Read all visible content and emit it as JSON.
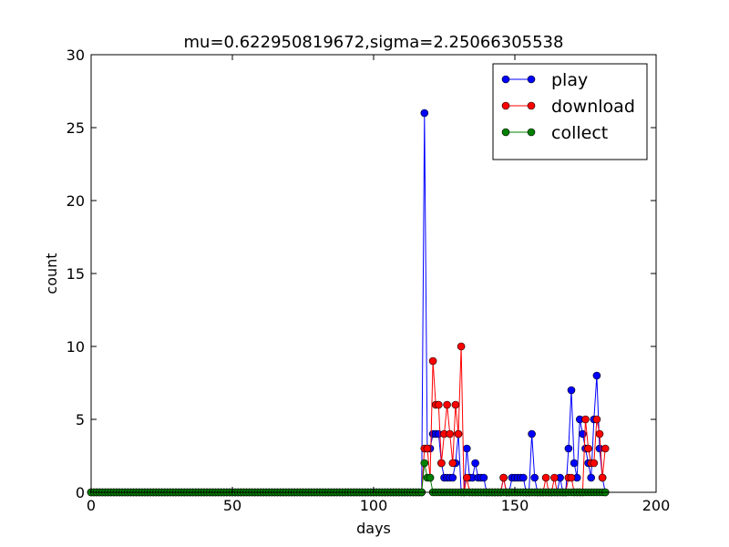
{
  "chart_data": {
    "type": "line",
    "title": "mu=0.622950819672,sigma=2.25066305538",
    "xlabel": "days",
    "ylabel": "count",
    "xlim": [
      0,
      200
    ],
    "ylim": [
      0,
      30
    ],
    "xticks": [
      0,
      50,
      100,
      150,
      200
    ],
    "yticks": [
      0,
      5,
      10,
      15,
      20,
      25,
      30
    ],
    "grid": false,
    "legend_position": "top-right",
    "x_range": [
      0,
      182
    ],
    "series": [
      {
        "name": "play",
        "color": "#0000ff",
        "nonzero": {
          "118": 26,
          "119": 3,
          "120": 3,
          "121": 4,
          "122": 4,
          "123": 4,
          "124": 2,
          "125": 1,
          "126": 1,
          "127": 1,
          "128": 1,
          "129": 2,
          "130": 4,
          "133": 3,
          "134": 1,
          "135": 1,
          "136": 2,
          "137": 1,
          "138": 1,
          "139": 1,
          "146": 1,
          "149": 1,
          "150": 1,
          "151": 1,
          "152": 1,
          "153": 1,
          "156": 4,
          "157": 1,
          "166": 1,
          "169": 3,
          "170": 7,
          "171": 2,
          "172": 1,
          "173": 5,
          "174": 4,
          "175": 3,
          "176": 2,
          "177": 1,
          "178": 5,
          "179": 8,
          "180": 3,
          "181": 1
        }
      },
      {
        "name": "download",
        "color": "#ff0000",
        "nonzero": {
          "118": 3,
          "119": 3,
          "120": 1,
          "121": 9,
          "122": 6,
          "123": 6,
          "124": 2,
          "125": 4,
          "126": 6,
          "127": 4,
          "128": 2,
          "129": 6,
          "130": 4,
          "131": 10,
          "133": 1,
          "146": 1,
          "161": 1,
          "164": 1,
          "169": 1,
          "170": 1,
          "175": 5,
          "176": 3,
          "177": 2,
          "178": 2,
          "179": 5,
          "180": 4,
          "181": 1,
          "182": 3
        }
      },
      {
        "name": "collect",
        "color": "#008000",
        "nonzero": {
          "118": 2,
          "119": 1,
          "120": 1
        }
      }
    ]
  }
}
